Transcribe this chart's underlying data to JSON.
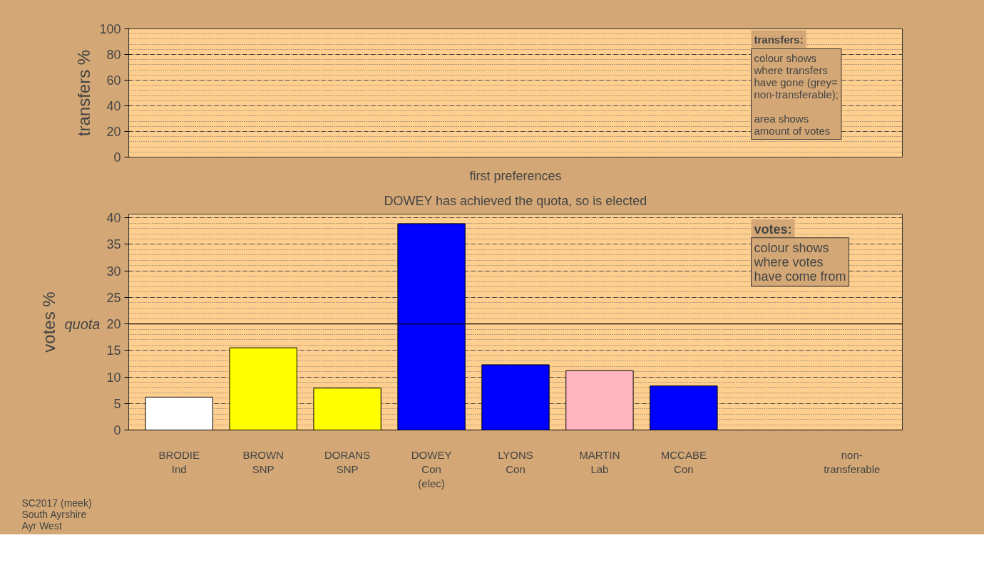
{
  "chart_data": [
    {
      "type": "bar",
      "ylabel": "transfers %",
      "categories": [
        null,
        null,
        null,
        null,
        null,
        null,
        null,
        null,
        null
      ],
      "values": [
        null,
        null,
        null,
        null,
        null,
        null,
        null,
        null,
        null
      ],
      "ylim": [
        0,
        100
      ],
      "yticks": [
        0,
        20,
        40,
        60,
        80,
        100
      ],
      "grid": "y",
      "tick_labels": "y",
      "annotations": [
        "transfers:",
        "colour shows\nwhere transfers\nhave gone (grey=\nnon-transferable);\n\narea shows\namount of votes"
      ]
    },
    {
      "type": "bar",
      "title": "first preferences",
      "subtitle": "DOWEY has achieved the quota, so is elected",
      "ylabel": "votes %",
      "categories": [
        "BRODIE\nInd",
        "BROWN\nSNP",
        "DORANS\nSNP",
        "DOWEY\nCon\n(elec)",
        "LYONS\nCon",
        "MARTIN\nLab",
        "MCCABE\nCon",
        null,
        "non-\ntransferable"
      ],
      "values": [
        6.2,
        15.5,
        7.9,
        38.9,
        12.3,
        11.2,
        8.3,
        null,
        null
      ],
      "colors": [
        "#ffffff",
        "#ffff00",
        "#ffff00",
        "#0000ff",
        "#0000ff",
        "#ffb6c1",
        "#0000ff",
        "#808080",
        "#808080"
      ],
      "ylim": [
        0,
        40.7
      ],
      "yticks": [
        0,
        5,
        10,
        15,
        20,
        25,
        30,
        35,
        40
      ],
      "grid": "y",
      "ref_lines": [
        {
          "axis": "y",
          "value": 20,
          "label": "quota",
          "color": "#000000",
          "line_style": "solid"
        }
      ],
      "annotations": [
        "votes:",
        "colour shows\nwhere votes\nhave come from",
        "SC2017 (meek)\nSouth Ayrshire\nAyr West"
      ]
    }
  ]
}
